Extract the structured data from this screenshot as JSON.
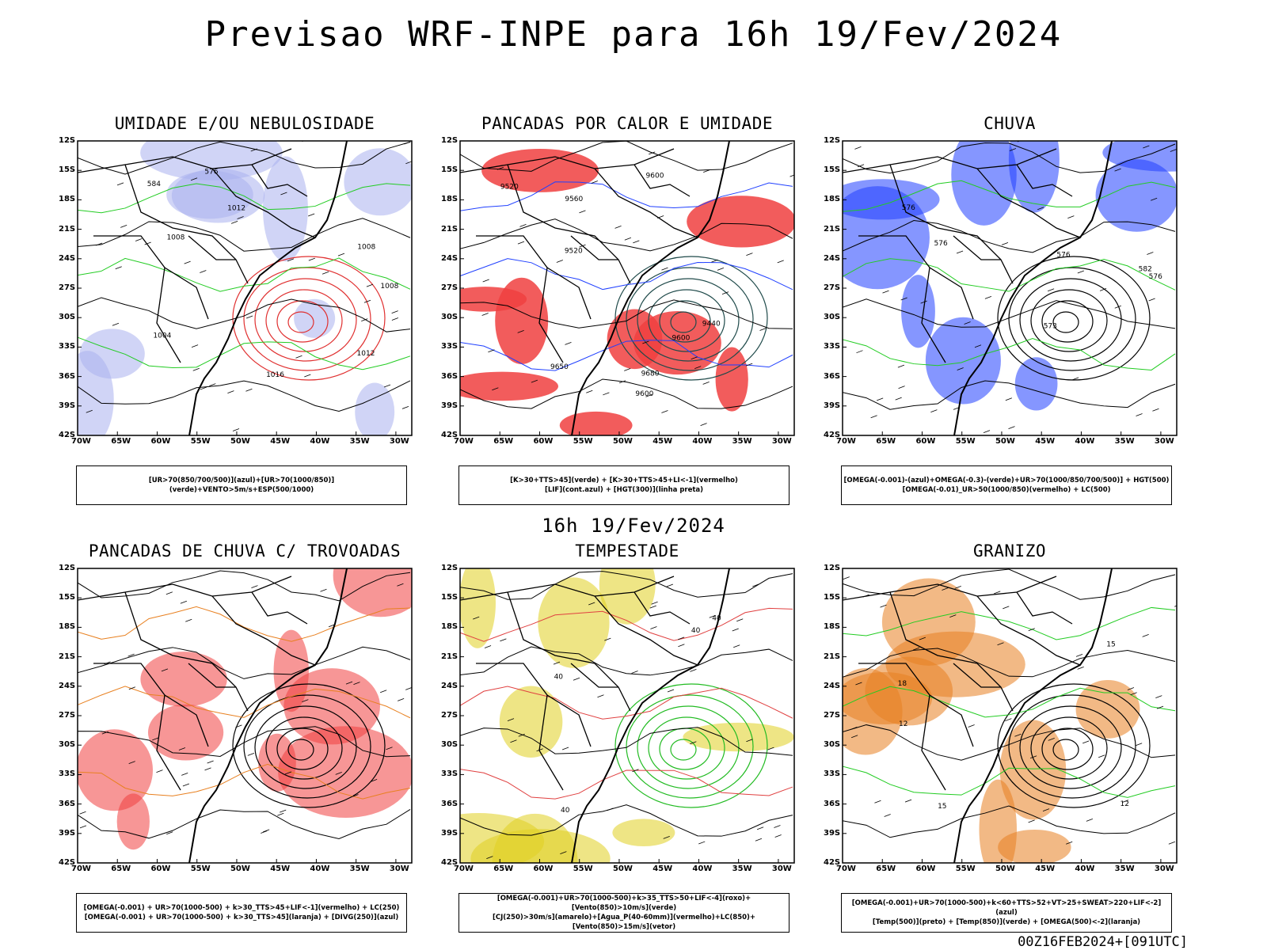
{
  "header": {
    "title": "Previsao WRF-INPE  para 16h 19/Fev/2024",
    "mid_label": "16h 19/Fev/2024",
    "footer_stamp": "00Z16FEB2024+[091UTC]"
  },
  "axes": {
    "lat_labels": [
      "12S",
      "15S",
      "18S",
      "21S",
      "24S",
      "27S",
      "30S",
      "33S",
      "36S",
      "39S",
      "42S"
    ],
    "lon_labels": [
      "70W",
      "65W",
      "60W",
      "55W",
      "50W",
      "45W",
      "40W",
      "35W",
      "30W"
    ]
  },
  "panels": [
    {
      "title": "UMIDADE E/OU NEBULOSIDADE",
      "legend": [
        "[UR>70(850/700/500)](azul)+[UR>70(1000/850)](verde)+VENTO>5m/s+ESP(500/1000)"
      ],
      "contour_labels": [
        "1008",
        "1008",
        "1004",
        "1012",
        "1016",
        "1008",
        "1012",
        "576",
        "584"
      ],
      "colors": {
        "fill": "#aab0ee",
        "line1": "#22cc22",
        "line2": "#e03030"
      }
    },
    {
      "title": "PANCADAS POR CALOR E UMIDADE",
      "legend": [
        "[K>30+TTS>45](verde) + [K>30+TTS>45+LI<-1](vermelho)",
        "[LIF](cont.azul) + [HGT(300)](linha preta)"
      ],
      "contour_labels": [
        "9680",
        "9650",
        "9600",
        "9600",
        "9560",
        "9520",
        "9520",
        "9600",
        "9440"
      ],
      "colors": {
        "fill": "#f04040",
        "line1": "#2040ff",
        "line2": "#1f4a4a"
      }
    },
    {
      "title": "CHUVA",
      "legend": [
        "[OMEGA(-0.001)-(azul)+OMEGA(-0.3)-(verde)+UR>70(1000/850/700/500)] + HGT(500)",
        "[OMEGA(-0.01)_UR>50(1000/850)(vermelho) + LC(500)"
      ],
      "contour_labels": [
        "576",
        "576",
        "582",
        "573",
        "576",
        "576"
      ],
      "colors": {
        "fill": "#2040ff",
        "line1": "#22cc22",
        "line2": "#e03030"
      }
    },
    {
      "title": "PANCADAS DE CHUVA C/ TROVOADAS",
      "legend": [
        "[OMEGA(-0.001) + UR>70(1000-500) + k>30_TTS>45+LIF<-1](vermelho) + LC(250)",
        "[OMEGA(-0.001) + UR>70(1000-500) + k>30_TTS>45](laranja) + [DIVG(250)](azul)"
      ],
      "contour_labels": [],
      "colors": {
        "fill": "#f04040",
        "line1": "#e88020",
        "line2": "#2040ff"
      }
    },
    {
      "title": "TEMPESTADE",
      "legend": [
        "[OMEGA(-0.001)+UR>70(1000-500)+k>35_TTS>50+LIF<-4](roxo)+[Vento(850)>10m/s](verde)",
        "[CJ(250)>30m/s](amarelo)+[Agua_P(40-60mm)](vermelho)+LC(850)+[Vento(850)>15m/s](vetor)"
      ],
      "contour_labels": [
        "40",
        "40",
        "40",
        "40"
      ],
      "colors": {
        "fill": "#e0d020",
        "line1": "#e04040",
        "line2": "#22bb22"
      }
    },
    {
      "title": "GRANIZO",
      "legend": [
        "[OMEGA(-0.001)+UR>70(1000-500)+k<60+TTS>52+VT>25+SWEAT>220+LIF<-2](azul)",
        "[Temp(500)](preto) + [Temp(850)](verde) + [OMEGA(500)<-2](laranja)"
      ],
      "contour_labels": [
        "15",
        "15",
        "12",
        "12",
        "18"
      ],
      "colors": {
        "fill": "#e88020",
        "line1": "#22cc22",
        "line2": "#000000"
      }
    }
  ]
}
